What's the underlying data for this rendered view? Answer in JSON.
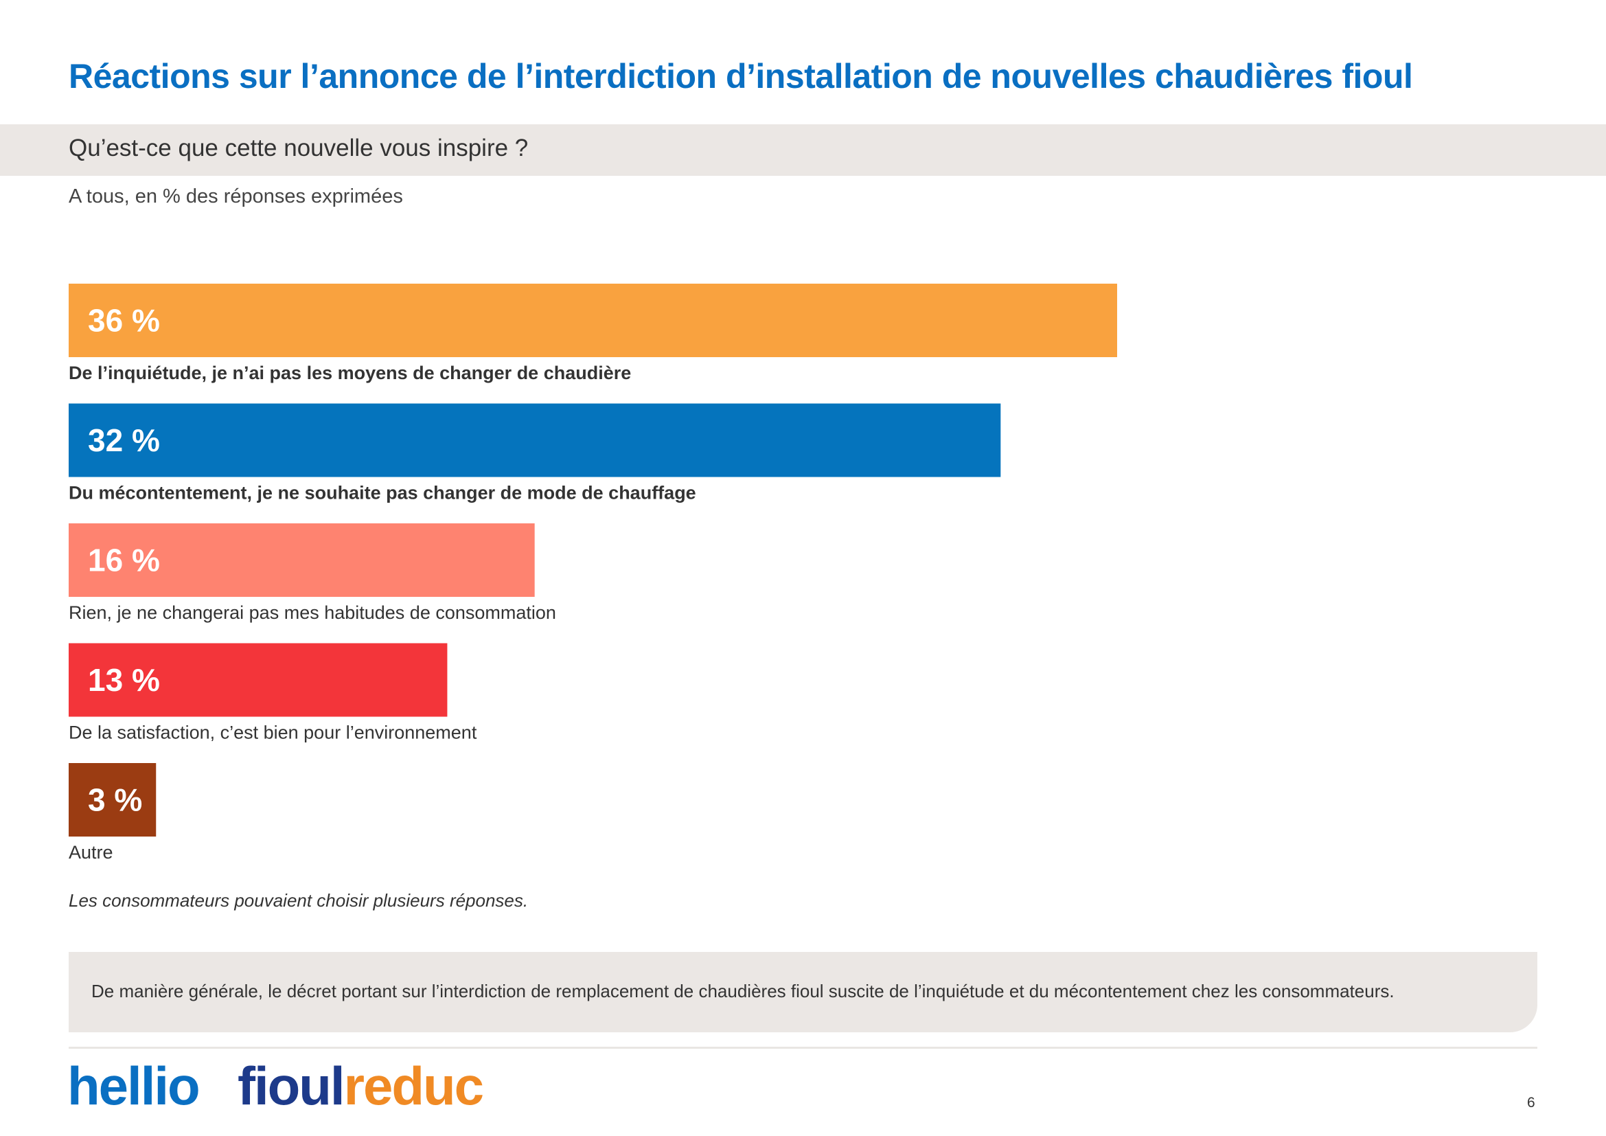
{
  "page": {
    "title": "Réactions sur l’annonce de l’interdiction d’installation de nouvelles chaudières fioul",
    "question": "Qu’est-ce que cette nouvelle vous inspire ?",
    "base": "A tous, en % des réponses exprimées",
    "note": "Les consommateurs pouvaient choisir plusieurs réponses.",
    "summary": "De manière générale, le décret portant sur l’interdiction de remplacement de chaudières fioul suscite de l’inquiétude et du mécontentement chez les consommateurs.",
    "page_number": "6"
  },
  "logos": {
    "hellio": "hellio",
    "fioulreduc_part1": "fioul",
    "fioulreduc_part2": "reduc"
  },
  "chart_data": {
    "type": "bar",
    "orientation": "horizontal",
    "unit": "%",
    "categories": [
      "De l’inquiétude, je n’ai pas les moyens de changer de chaudière",
      "Du mécontentement, je ne souhaite pas changer de mode de chauffage",
      "Rien, je ne changerai pas mes habitudes de consommation",
      "De la satisfaction, c’est bien pour l’environnement",
      "Autre"
    ],
    "values": [
      36,
      32,
      16,
      13,
      3
    ],
    "value_labels": [
      "36 %",
      "32 %",
      "16 %",
      "13 %",
      "3 %"
    ],
    "colors": [
      "#f9a23f",
      "#0574bd",
      "#fe8370",
      "#f3353a",
      "#9b3c12"
    ],
    "bold_labels": [
      true,
      true,
      false,
      false,
      false
    ],
    "xlim": [
      0,
      36
    ],
    "grid": false,
    "legend": "none"
  }
}
